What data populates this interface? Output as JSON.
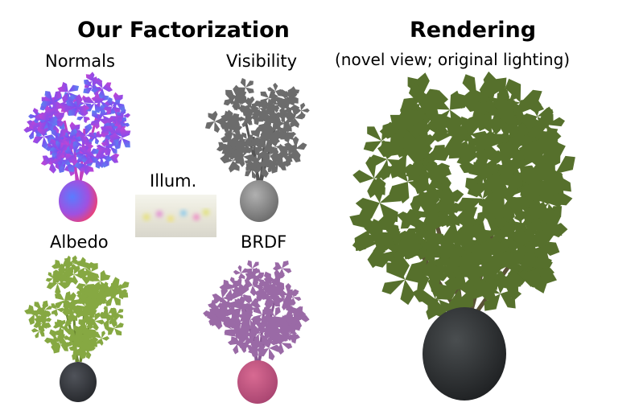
{
  "left_title": "Our Factorization",
  "right_title": "Rendering",
  "right_subtitle": "(novel view; original lighting)",
  "panels": {
    "normals": {
      "label": "Normals"
    },
    "visibility": {
      "label": "Visibility"
    },
    "illumination": {
      "label": "Illum."
    },
    "albedo": {
      "label": "Albedo"
    },
    "brdf": {
      "label": "BRDF"
    }
  },
  "colors": {
    "visibility_leaf": "#6c6c6c",
    "visibility_pot": "#8a8a8a",
    "albedo_leaf": "#86a842",
    "albedo_pot": "#3a3c40",
    "brdf_leaf": "#9a6aa6",
    "brdf_pot": "#c2587e",
    "render_leaf": "#56702c",
    "render_pot": "#34383a"
  }
}
